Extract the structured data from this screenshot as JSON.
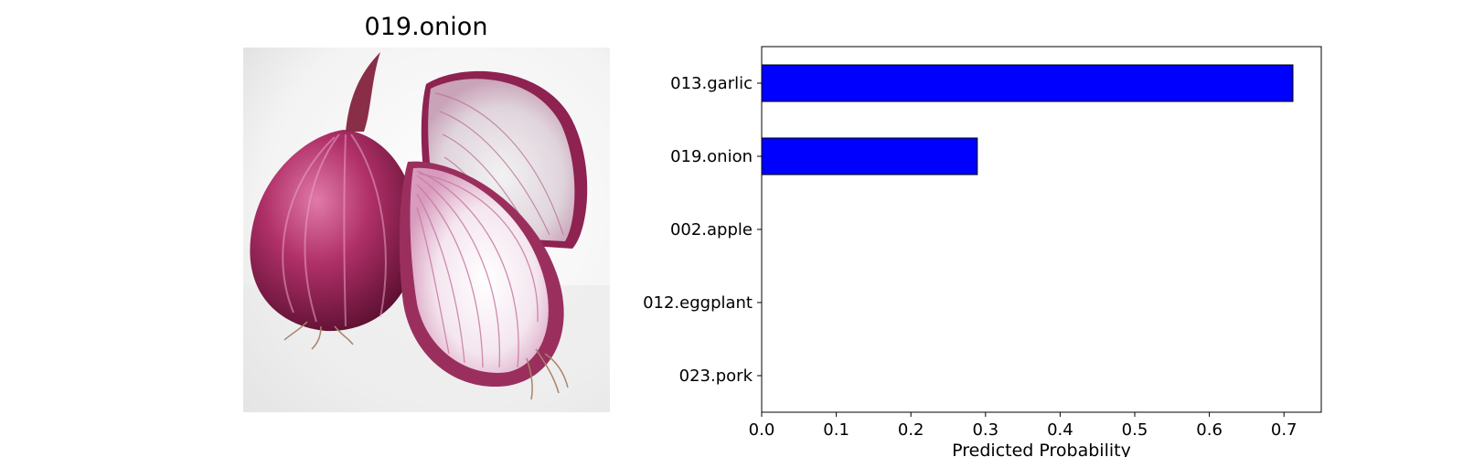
{
  "image_panel": {
    "title": "019.onion",
    "photo_icon": "red-onion-photo"
  },
  "chart_data": {
    "type": "bar",
    "orientation": "horizontal",
    "categories": [
      "013.garlic",
      "019.onion",
      "002.apple",
      "012.eggplant",
      "023.pork"
    ],
    "values": [
      0.712,
      0.289,
      0.0,
      0.0,
      0.0
    ],
    "title": "",
    "xlabel": "Predicted Probability",
    "ylabel": "",
    "xlim": [
      0,
      0.75
    ],
    "xticks": [
      0.0,
      0.1,
      0.2,
      0.3,
      0.4,
      0.5,
      0.6,
      0.7
    ],
    "grid": false,
    "bar_color": "#0000ff",
    "edge_color": "#000000"
  }
}
